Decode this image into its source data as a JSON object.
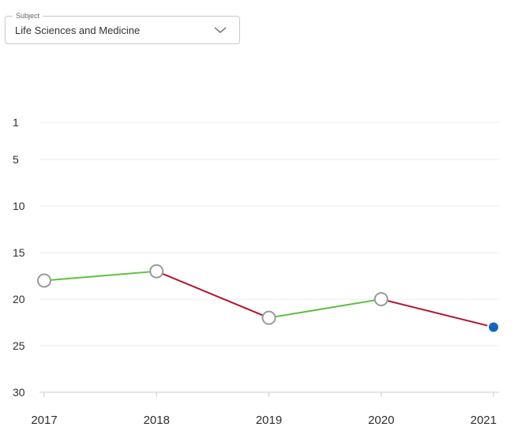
{
  "subject": {
    "legend": "Subject",
    "value": "Life Sciences and Medicine",
    "icon": "chevron-down-icon"
  },
  "chart_data": {
    "type": "line",
    "title": "",
    "xlabel": "",
    "ylabel": "",
    "x": [
      "2017",
      "2018",
      "2019",
      "2020",
      "2021"
    ],
    "series": [
      {
        "values": [
          18,
          17,
          22,
          20,
          23
        ]
      }
    ],
    "y_ticks": [
      1,
      5,
      10,
      15,
      20,
      25,
      30
    ],
    "ylim": [
      1,
      30
    ],
    "y_inverted": true,
    "grid": true,
    "colors": {
      "improved": "#5cc043",
      "declined": "#b0142b",
      "marker_stroke": "#9a9a9a",
      "marker_fill": "#ffffff",
      "latest_marker": "#1565c0",
      "grid": "#eeeeee",
      "axis": "#cccccc"
    }
  }
}
